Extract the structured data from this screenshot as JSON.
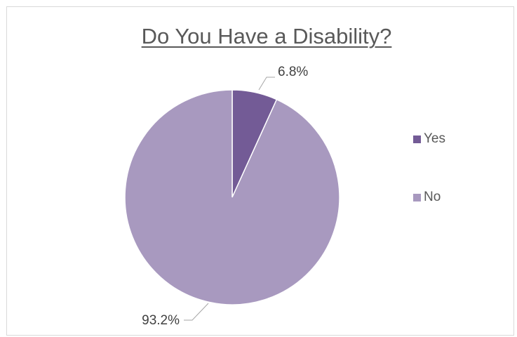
{
  "chart_data": {
    "type": "pie",
    "title": "Do You Have a Disability?",
    "categories": [
      "Yes",
      "No"
    ],
    "values": [
      6.8,
      93.2
    ],
    "data_labels": [
      "6.8%",
      "93.2%"
    ],
    "colors": [
      "#735b96",
      "#a899bf"
    ],
    "legend_placement": "right",
    "start_angle": "12 o'clock, clockwise"
  }
}
